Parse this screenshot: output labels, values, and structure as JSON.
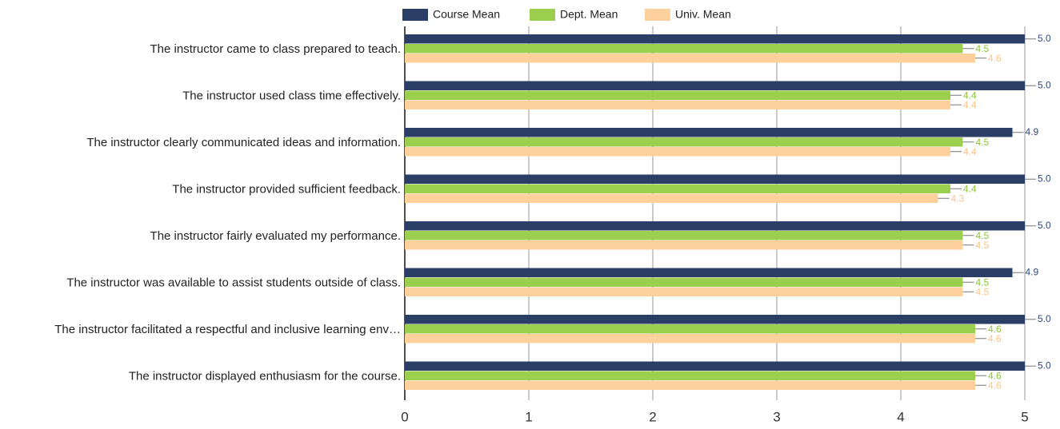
{
  "chart_data": {
    "type": "hbar",
    "categories": [
      "The instructor came to class prepared to teach.",
      "The instructor used class time effectively.",
      "The instructor clearly communicated ideas and information.",
      "The instructor provided sufficient feedback.",
      "The instructor fairly evaluated my performance.",
      "The instructor was available to assist students outside of class.",
      "The instructor facilitated a respectful and inclusive learning env…",
      "The instructor displayed enthusiasm for the course."
    ],
    "series": [
      {
        "name": "Course Mean",
        "color": "#2b3f66",
        "values": [
          5,
          5,
          4.9,
          5,
          5,
          4.9,
          5,
          5
        ],
        "value_labels": [
          "5.0",
          "5.0",
          "4.9",
          "5.0",
          "5.0",
          "4.9",
          "5.0",
          "5.0"
        ]
      },
      {
        "name": "Dept. Mean",
        "color": "#9dcf4f",
        "values": [
          4.5,
          4.4,
          4.5,
          4.4,
          4.5,
          4.5,
          4.6,
          4.6
        ],
        "value_labels": [
          "4.5",
          "4.4",
          "4.5",
          "4.4",
          "4.5",
          "4.5",
          "4.6",
          "4.6"
        ]
      },
      {
        "name": "Univ. Mean",
        "color": "#fdd09c",
        "values": [
          4.6,
          4.4,
          4.4,
          4.3,
          4.5,
          4.5,
          4.6,
          4.6
        ],
        "value_labels": [
          "4.6",
          "4.4",
          "4.4",
          "4.3",
          "4.5",
          "4.5",
          "4.6",
          "4.6"
        ]
      }
    ],
    "xlim": [
      0,
      5
    ],
    "xticks": [
      0,
      1,
      2,
      3,
      4,
      5
    ],
    "grid": true,
    "legend": "top"
  }
}
